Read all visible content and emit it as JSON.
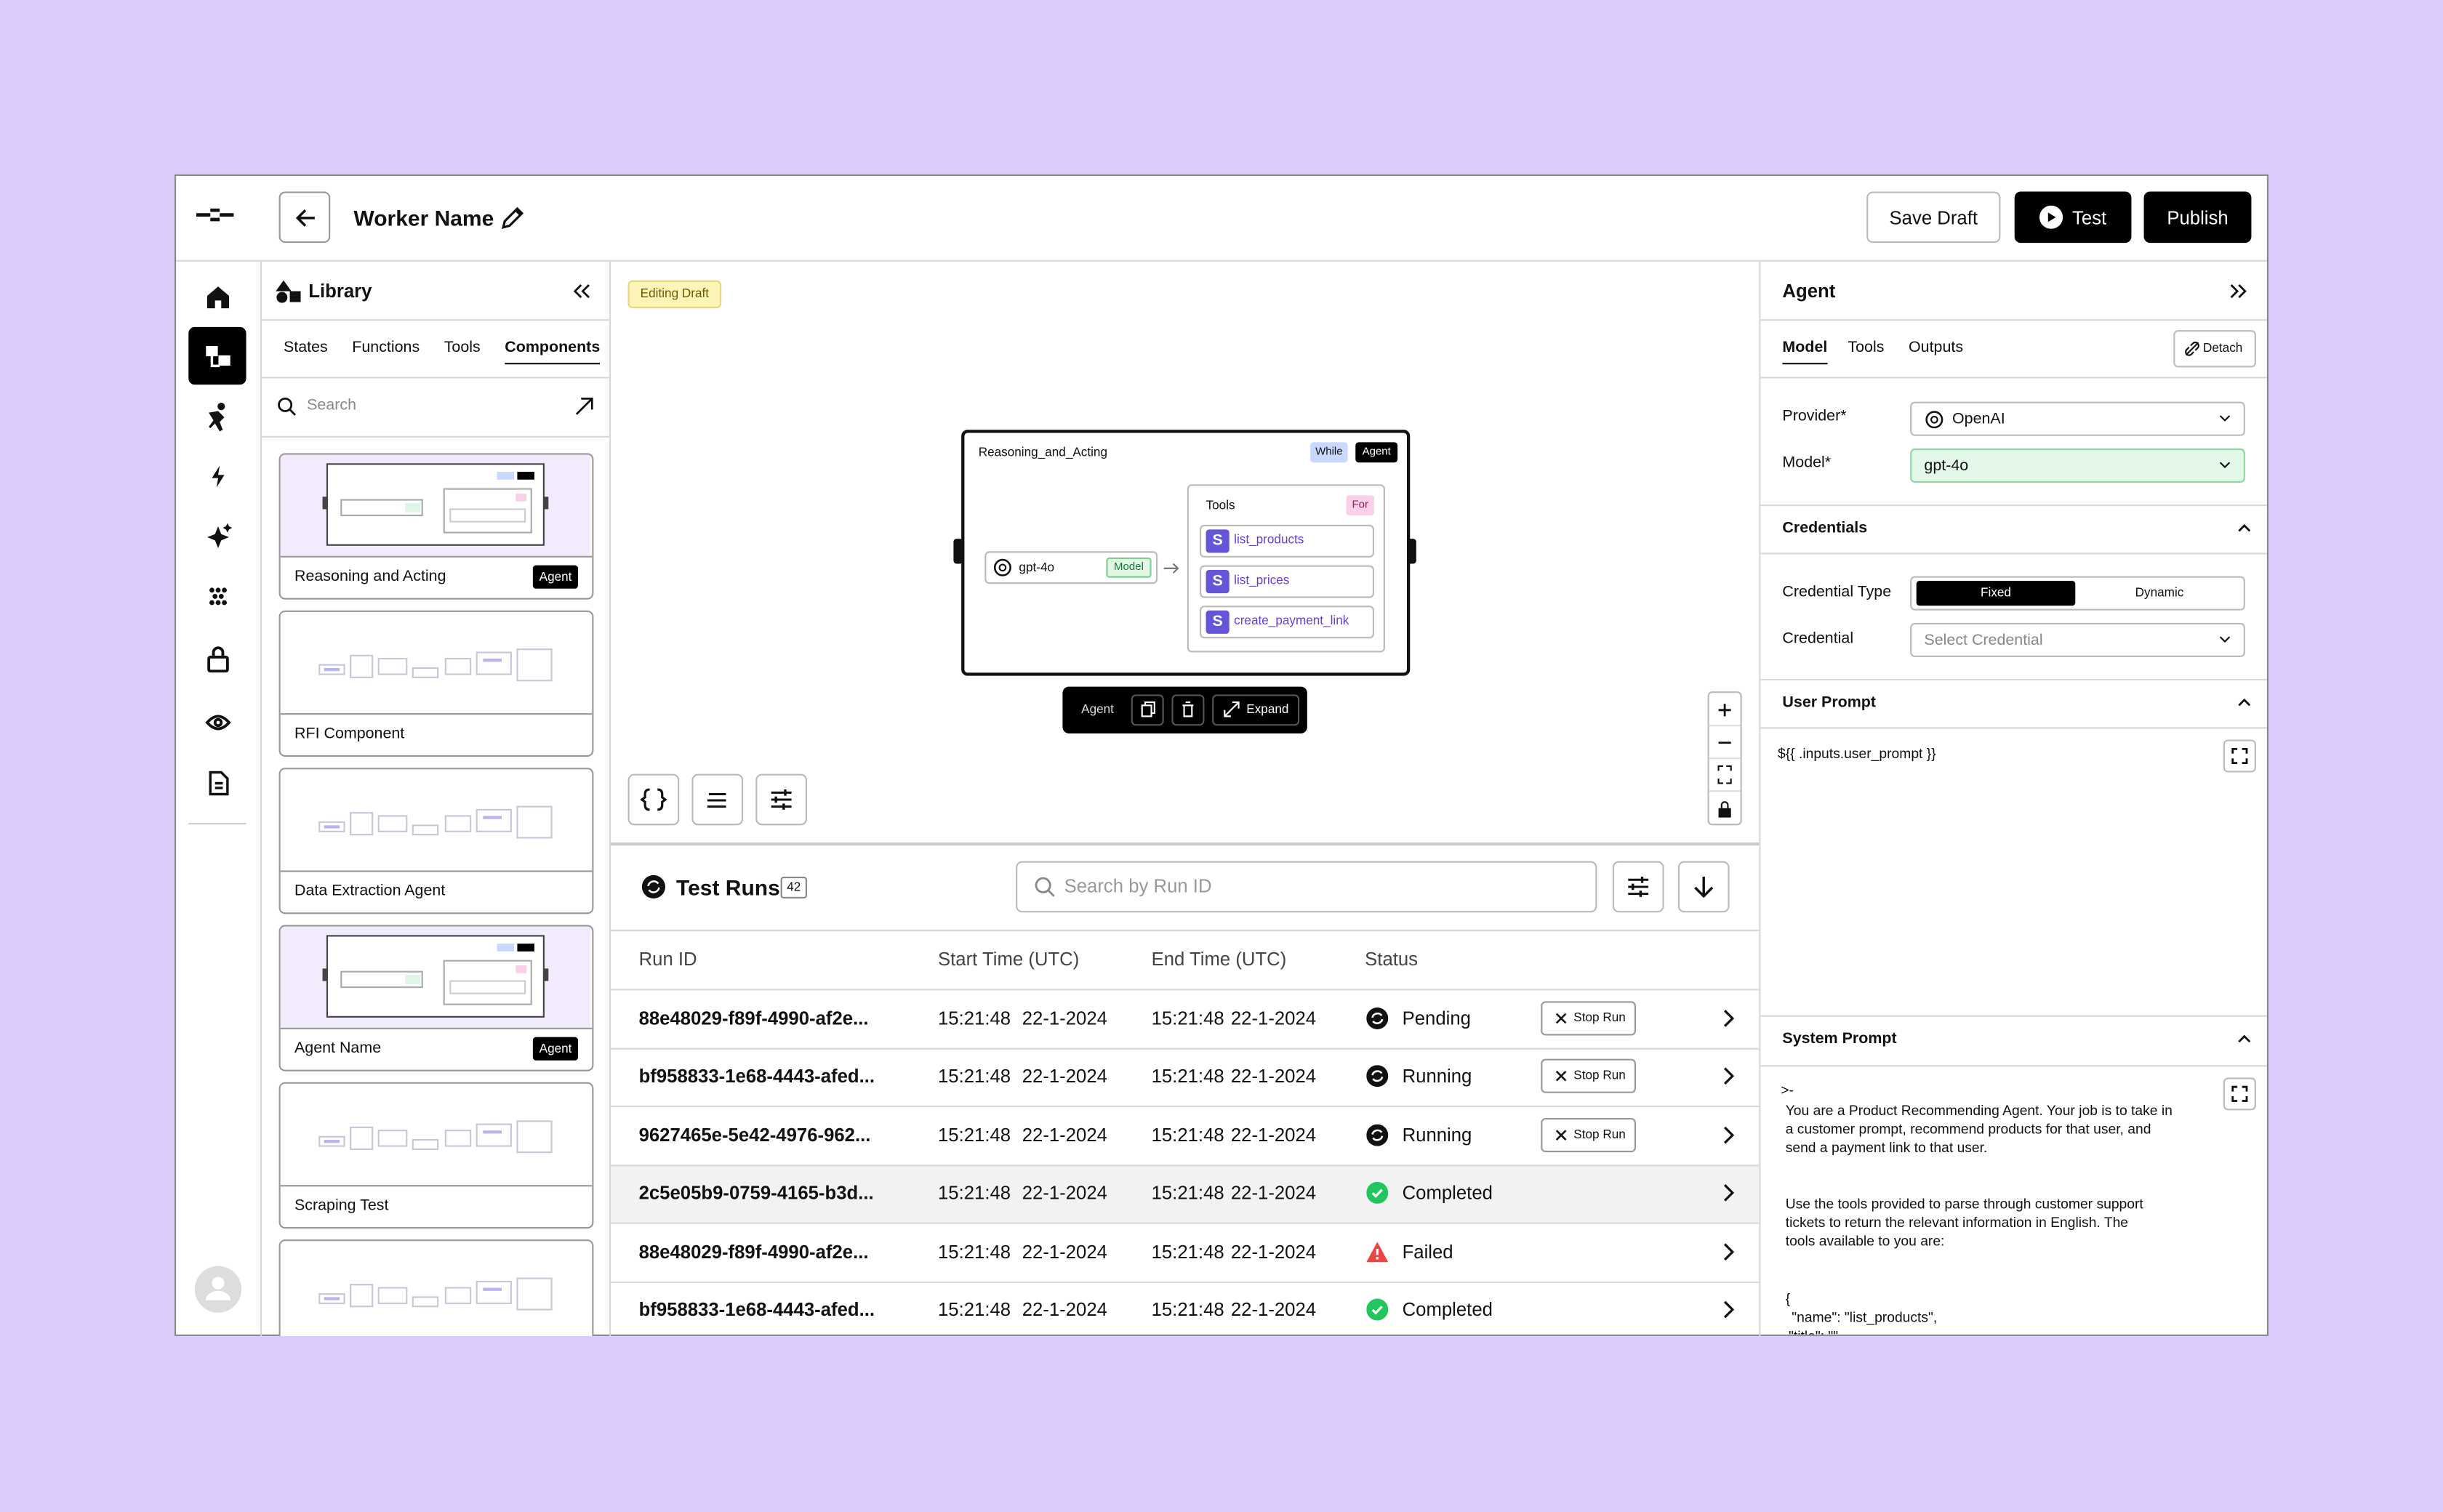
{
  "header": {
    "worker_name": "Worker Name",
    "save_draft": "Save Draft",
    "test": "Test",
    "publish": "Publish"
  },
  "library": {
    "title": "Library",
    "tabs": [
      "States",
      "Functions",
      "Tools",
      "Components"
    ],
    "search_placeholder": "Search",
    "components": [
      {
        "name": "Reasoning and Acting",
        "badge": "Agent"
      },
      {
        "name": "RFI Component"
      },
      {
        "name": "Data Extraction Agent"
      },
      {
        "name": "Agent Name",
        "badge": "Agent"
      },
      {
        "name": "Scraping Test"
      }
    ]
  },
  "canvas": {
    "badge": "Editing Draft",
    "node": {
      "title": "Reasoning_and_Acting",
      "tags": [
        "While",
        "Agent"
      ],
      "model": "gpt-4o",
      "model_tag": "Model",
      "tools_title": "Tools",
      "tools_tag": "For",
      "tools": [
        {
          "icon": "S",
          "name": "list_products"
        },
        {
          "icon": "S",
          "name": "list_prices"
        },
        {
          "icon": "S",
          "name": "create_payment_link"
        }
      ]
    },
    "toolbar": {
      "label": "Agent",
      "expand": "Expand"
    }
  },
  "test_runs": {
    "title": "Test Runs",
    "count": "42",
    "search_placeholder": "Search by Run ID",
    "columns": [
      "Run ID",
      "Start Time (UTC)",
      "End Time (UTC)",
      "Status"
    ],
    "rows": [
      {
        "id": "88e48029-f89f-4990-af2e...",
        "start_time": "15:21:48",
        "start_date": "22-1-2024",
        "end_time": "15:21:48",
        "end_date": "22-1-2024",
        "status": "Pending",
        "action": "Stop Run"
      },
      {
        "id": "bf958833-1e68-4443-afed...",
        "start_time": "15:21:48",
        "start_date": "22-1-2024",
        "end_time": "15:21:48",
        "end_date": "22-1-2024",
        "status": "Running",
        "action": "Stop Run"
      },
      {
        "id": "9627465e-5e42-4976-962...",
        "start_time": "15:21:48",
        "start_date": "22-1-2024",
        "end_time": "15:21:48",
        "end_date": "22-1-2024",
        "status": "Running",
        "action": "Stop Run"
      },
      {
        "id": "2c5e05b9-0759-4165-b3d...",
        "start_time": "15:21:48",
        "start_date": "22-1-2024",
        "end_time": "15:21:48",
        "end_date": "22-1-2024",
        "status": "Completed"
      },
      {
        "id": "88e48029-f89f-4990-af2e...",
        "start_time": "15:21:48",
        "start_date": "22-1-2024",
        "end_time": "15:21:48",
        "end_date": "22-1-2024",
        "status": "Failed"
      },
      {
        "id": "bf958833-1e68-4443-afed...",
        "start_time": "15:21:48",
        "start_date": "22-1-2024",
        "end_time": "15:21:48",
        "end_date": "22-1-2024",
        "status": "Completed"
      }
    ]
  },
  "agent_panel": {
    "title": "Agent",
    "tabs": [
      "Model",
      "Tools",
      "Outputs"
    ],
    "detach": "Detach",
    "provider_label": "Provider*",
    "provider": "OpenAI",
    "model_label": "Model*",
    "model": "gpt-4o",
    "credentials_title": "Credentials",
    "credential_type_label": "Credential Type",
    "credential_types": [
      "Fixed",
      "Dynamic"
    ],
    "credential_label": "Credential",
    "credential_placeholder": "Select Credential",
    "user_prompt_title": "User Prompt",
    "user_prompt": "${{ .inputs.user_prompt }}",
    "system_prompt_title": "System Prompt",
    "system_prompt": [
      ">-",
      "You are a Product Recommending Agent. Your job is to take in",
      "a customer prompt, recommend products for that user, and",
      "send a payment link to that user.",
      "Use the tools provided to parse through customer support",
      "tickets to return the relevant information in English. The",
      "tools available to you are:",
      "{",
      "\"name\": \"list_products\",",
      "\"title\": \"\""
    ]
  }
}
